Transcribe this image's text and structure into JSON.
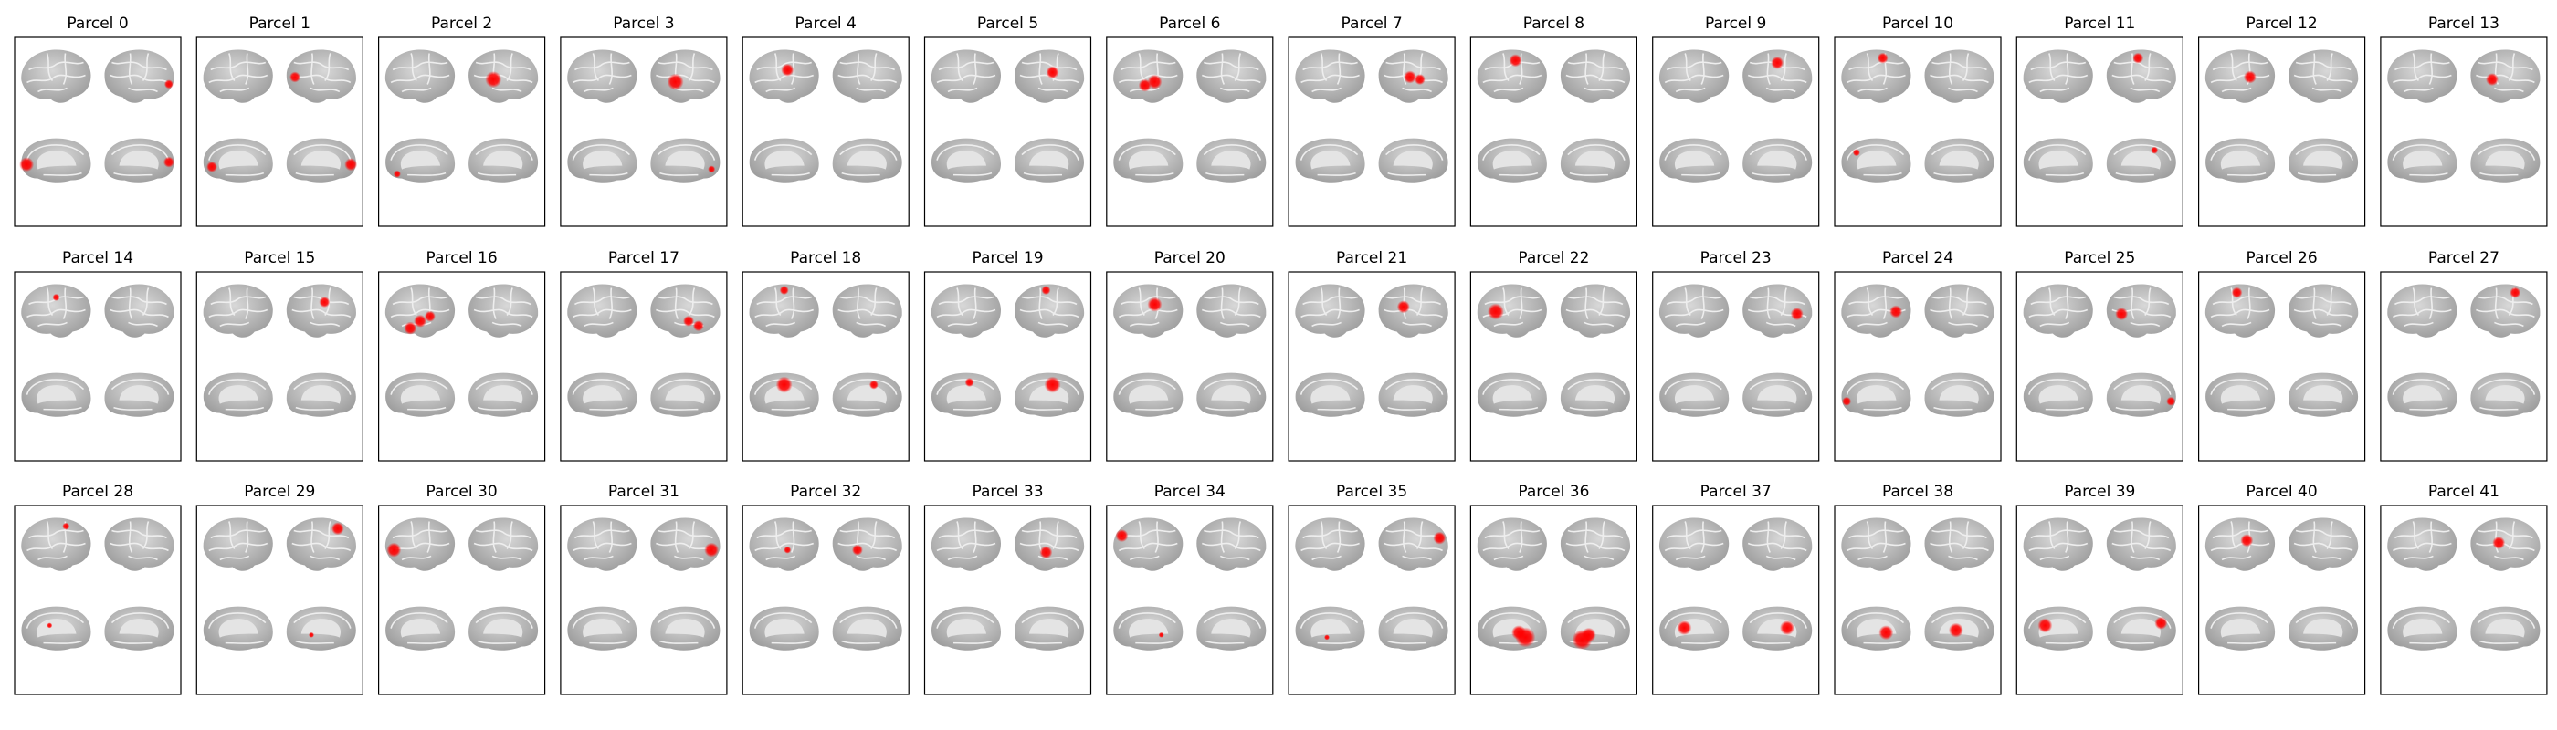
{
  "panels": [
    {
      "title": "Parcel 0"
    },
    {
      "title": "Parcel 1"
    },
    {
      "title": "Parcel 2"
    },
    {
      "title": "Parcel 3"
    },
    {
      "title": "Parcel 4"
    },
    {
      "title": "Parcel 5"
    },
    {
      "title": "Parcel 6"
    },
    {
      "title": "Parcel 7"
    },
    {
      "title": "Parcel 8"
    },
    {
      "title": "Parcel 9"
    },
    {
      "title": "Parcel 10"
    },
    {
      "title": "Parcel 11"
    },
    {
      "title": "Parcel 12"
    },
    {
      "title": "Parcel 13"
    },
    {
      "title": "Parcel 14"
    },
    {
      "title": "Parcel 15"
    },
    {
      "title": "Parcel 16"
    },
    {
      "title": "Parcel 17"
    },
    {
      "title": "Parcel 18"
    },
    {
      "title": "Parcel 19"
    },
    {
      "title": "Parcel 20"
    },
    {
      "title": "Parcel 21"
    },
    {
      "title": "Parcel 22"
    },
    {
      "title": "Parcel 23"
    },
    {
      "title": "Parcel 24"
    },
    {
      "title": "Parcel 25"
    },
    {
      "title": "Parcel 26"
    },
    {
      "title": "Parcel 27"
    },
    {
      "title": "Parcel 28"
    },
    {
      "title": "Parcel 29"
    },
    {
      "title": "Parcel 30"
    },
    {
      "title": "Parcel 31"
    },
    {
      "title": "Parcel 32"
    },
    {
      "title": "Parcel 33"
    },
    {
      "title": "Parcel 34"
    },
    {
      "title": "Parcel 35"
    },
    {
      "title": "Parcel 36"
    },
    {
      "title": "Parcel 37"
    },
    {
      "title": "Parcel 38"
    },
    {
      "title": "Parcel 39"
    },
    {
      "title": "Parcel 40"
    },
    {
      "title": "Parcel 41"
    }
  ]
}
